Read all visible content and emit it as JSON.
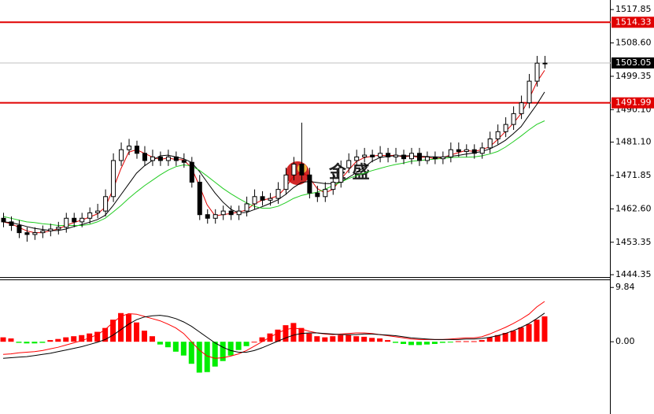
{
  "chart_data": [
    {
      "type": "candlestick",
      "open": [
        1460,
        1459,
        1458,
        1456,
        1455.5,
        1456,
        1456.5,
        1457,
        1457.5,
        1460,
        1459,
        1460,
        1461.5,
        1462,
        1466,
        1476,
        1479,
        1480,
        1478,
        1476,
        1477,
        1476,
        1477,
        1476,
        1475.5,
        1470,
        1461,
        1460,
        1461,
        1462,
        1461,
        1462,
        1464,
        1466,
        1465,
        1465.5,
        1468,
        1472,
        1475,
        1472,
        1467,
        1466,
        1468,
        1470,
        1474,
        1476,
        1477,
        1477.5,
        1477,
        1478,
        1477,
        1477.5,
        1476.5,
        1478,
        1476,
        1477,
        1476.5,
        1477,
        1479,
        1478.5,
        1479,
        1478,
        1479.5,
        1482,
        1484,
        1486,
        1489,
        1492,
        1498,
        1503
      ],
      "high": [
        1461.5,
        1460.5,
        1459.5,
        1457.5,
        1457.5,
        1458,
        1458.5,
        1459,
        1461.5,
        1461.5,
        1461.5,
        1463,
        1464,
        1468,
        1478,
        1481,
        1482,
        1481.5,
        1480,
        1479,
        1478.5,
        1479,
        1478.5,
        1478,
        1477,
        1472,
        1462.5,
        1462.5,
        1463.5,
        1463.5,
        1463.5,
        1466,
        1468,
        1467.5,
        1467,
        1470,
        1474,
        1477,
        1486.5,
        1474,
        1469,
        1470,
        1472,
        1476,
        1478,
        1479,
        1479.5,
        1479,
        1480,
        1479.5,
        1479.5,
        1479,
        1479.5,
        1479.5,
        1478.5,
        1478.5,
        1478.5,
        1481,
        1481,
        1480.5,
        1480.5,
        1481,
        1484,
        1486,
        1488,
        1491,
        1494,
        1500,
        1505,
        1505
      ],
      "low": [
        1457.5,
        1456.5,
        1454.5,
        1453.5,
        1454,
        1454.5,
        1455,
        1455.5,
        1456,
        1457.5,
        1457.5,
        1458.5,
        1460,
        1460.5,
        1464.5,
        1474.5,
        1477.5,
        1476.5,
        1474.5,
        1474.5,
        1474.5,
        1474.5,
        1474.5,
        1474,
        1468.5,
        1459.5,
        1458.5,
        1458.5,
        1459.5,
        1459.5,
        1459.5,
        1460.5,
        1462.5,
        1463.5,
        1463.5,
        1464,
        1466.5,
        1470.5,
        1470.5,
        1465.5,
        1464.5,
        1464.5,
        1466.5,
        1468.5,
        1472.5,
        1474.5,
        1475.5,
        1475.5,
        1475.5,
        1475.5,
        1475.5,
        1475,
        1475,
        1474.5,
        1475,
        1475,
        1475,
        1475.5,
        1477,
        1477,
        1476.5,
        1476.5,
        1478,
        1480.5,
        1482.5,
        1484.5,
        1487.5,
        1490.5,
        1496.5,
        1501.5
      ],
      "close": [
        1459,
        1458,
        1456,
        1455.5,
        1456,
        1456.5,
        1457,
        1457.5,
        1460,
        1459,
        1460,
        1461.5,
        1462,
        1466,
        1476,
        1479,
        1480,
        1478,
        1476,
        1477,
        1476,
        1477,
        1476,
        1475.5,
        1470,
        1461,
        1460,
        1461,
        1462,
        1461,
        1462,
        1464,
        1466,
        1465,
        1465.5,
        1468,
        1472,
        1475,
        1472,
        1467,
        1466,
        1468,
        1470,
        1474,
        1476,
        1477,
        1477.5,
        1477,
        1478,
        1477,
        1477.5,
        1476.5,
        1478,
        1476,
        1477,
        1476.5,
        1477,
        1479,
        1478.5,
        1479,
        1478,
        1479.5,
        1482,
        1484,
        1486,
        1489,
        1492,
        1498,
        1503,
        1503
      ],
      "series": [
        {
          "color": "#e00000",
          "values": [
            1459,
            1458.5,
            1457.5,
            1456.5,
            1456,
            1456,
            1456.5,
            1457,
            1458,
            1458.8,
            1459.5,
            1460.3,
            1461.2,
            1463,
            1468,
            1473.7,
            1478.3,
            1479,
            1478,
            1477,
            1476.3,
            1476.7,
            1476.3,
            1476.2,
            1474,
            1469,
            1463.7,
            1460.7,
            1461,
            1461.3,
            1461.7,
            1462.3,
            1464,
            1465,
            1465.5,
            1466.2,
            1468.5,
            1471.7,
            1473,
            1471.3,
            1468.3,
            1467,
            1468,
            1470.7,
            1473.3,
            1475.7,
            1476.8,
            1477.2,
            1477.5,
            1477.3,
            1477.5,
            1477,
            1477.3,
            1476.8,
            1477,
            1476.5,
            1476.8,
            1477.5,
            1478.2,
            1478.8,
            1478.5,
            1479,
            1479.8,
            1481.8,
            1484,
            1486.3,
            1489,
            1493,
            1497.7,
            1501
          ]
        },
        {
          "color": "#000000",
          "values": [
            1459,
            1458.8,
            1458.3,
            1457.7,
            1457.2,
            1456.9,
            1456.6,
            1456.6,
            1457,
            1457.7,
            1458.2,
            1458.9,
            1459.6,
            1460.8,
            1463.5,
            1466.5,
            1469.5,
            1472.5,
            1474.5,
            1476,
            1477.3,
            1477.5,
            1477,
            1476.5,
            1475.5,
            1473,
            1470,
            1467,
            1464.5,
            1462.5,
            1461.5,
            1461.6,
            1462.4,
            1463.2,
            1464.1,
            1465.1,
            1466.6,
            1468.5,
            1469.9,
            1470.2,
            1469.9,
            1469.6,
            1469.6,
            1470.1,
            1471.3,
            1472.6,
            1474.1,
            1475.8,
            1476.8,
            1477.2,
            1477.3,
            1477.3,
            1477.3,
            1477.2,
            1477.1,
            1477,
            1476.9,
            1477.2,
            1477.4,
            1477.8,
            1478.1,
            1478.5,
            1479.2,
            1480.3,
            1481.6,
            1483.4,
            1485.4,
            1488.5,
            1491.5,
            1495
          ]
        },
        {
          "color": "#22cc22",
          "values": [
            1460.5,
            1460,
            1459.5,
            1459,
            1458.8,
            1458.5,
            1458.3,
            1458,
            1458,
            1458,
            1458,
            1458.3,
            1459,
            1460,
            1461.7,
            1463.5,
            1465.5,
            1467.3,
            1469,
            1470.5,
            1472,
            1473.3,
            1474.3,
            1474.8,
            1474.5,
            1473.3,
            1471.7,
            1470,
            1468.3,
            1466.8,
            1465.5,
            1464.3,
            1463.3,
            1462.8,
            1462.8,
            1463.3,
            1464.3,
            1465.5,
            1466.3,
            1466.8,
            1467.2,
            1468,
            1469,
            1470,
            1471,
            1471.8,
            1472.5,
            1473.2,
            1473.8,
            1474.4,
            1474.9,
            1475.3,
            1475.8,
            1476,
            1476.2,
            1476.4,
            1476.6,
            1476.8,
            1476.9,
            1476.9,
            1477,
            1477.3,
            1477.8,
            1478.5,
            1479.7,
            1481.2,
            1482.8,
            1484.5,
            1486,
            1487
          ]
        }
      ],
      "levels": [
        {
          "value": 1514.33,
          "color": "#e00000"
        },
        {
          "value": 1503.05,
          "color": "#000000"
        },
        {
          "value": 1491.99,
          "color": "#e00000"
        }
      ],
      "watermark": "金 盛",
      "ylim": [
        1443.7,
        1520.5
      ],
      "yticks": [
        1517.85,
        {
          "value": 1508.6,
          "label": "1508.60"
        },
        1499.35,
        {
          "value": 1490.1,
          "label": "1490.10"
        },
        {
          "value": 1481.1,
          "label": "1481.10"
        },
        1471.85,
        {
          "value": 1462.6,
          "label": "1462.60"
        },
        1453.35,
        1444.35
      ]
    },
    {
      "type": "macd",
      "values": [
        0.8,
        0.6,
        -0.2,
        -0.3,
        -0.3,
        -0.2,
        0.3,
        0.5,
        0.8,
        1.0,
        1.2,
        1.5,
        1.8,
        2.5,
        4.0,
        5.2,
        5.0,
        3.5,
        2.0,
        1.0,
        -0.5,
        -1.0,
        -1.8,
        -2.5,
        -4.0,
        -5.6,
        -5.5,
        -4.5,
        -3.5,
        -2.5,
        -1.5,
        -0.8,
        0,
        0.8,
        1.5,
        2.2,
        3.0,
        3.4,
        2.5,
        1.5,
        1.0,
        0.8,
        1.0,
        1.2,
        1.2,
        1.0,
        0.9,
        0.7,
        0.6,
        0.3,
        -0.2,
        -0.4,
        -0.6,
        -0.6,
        -0.5,
        -0.4,
        -0.2,
        -0.1,
        0.1,
        0.1,
        0.1,
        0.3,
        0.8,
        1.2,
        1.6,
        2.0,
        2.6,
        3.2,
        4.0,
        4.6
      ],
      "colors": [
        "#ff0000",
        "#00ee00"
      ],
      "series": [
        {
          "color": "#ff0000",
          "values": [
            -2.3,
            -2.2,
            -2,
            -1.9,
            -1.8,
            -1.6,
            -1.3,
            -1,
            -0.6,
            -0.2,
            0.2,
            0.7,
            1.3,
            2.2,
            3.5,
            4.6,
            5.1,
            5.0,
            4.6,
            4.2,
            3.8,
            3.2,
            2.5,
            1.5,
            0,
            -1.5,
            -2.6,
            -3,
            -2.9,
            -2.6,
            -2.2,
            -1.6,
            -0.8,
            0,
            0.8,
            1.6,
            2.2,
            2.5,
            2.3,
            1.9,
            1.6,
            1.4,
            1.3,
            1.4,
            1.5,
            1.6,
            1.6,
            1.5,
            1.3,
            1.1,
            0.9,
            0.7,
            0.5,
            0.4,
            0.4,
            0.4,
            0.4,
            0.5,
            0.6,
            0.7,
            0.7,
            0.9,
            1.4,
            2,
            2.6,
            3.3,
            4.1,
            5.0,
            6.3,
            7.3
          ]
        },
        {
          "color": "#000000",
          "values": [
            -3,
            -2.9,
            -2.8,
            -2.7,
            -2.5,
            -2.3,
            -2.1,
            -1.8,
            -1.5,
            -1.2,
            -0.9,
            -0.5,
            -0.1,
            0.4,
            1.2,
            2.2,
            3.2,
            4,
            4.5,
            4.7,
            4.8,
            4.6,
            4.2,
            3.6,
            2.8,
            1.8,
            0.8,
            -0.2,
            -1,
            -1.6,
            -1.9,
            -1.9,
            -1.6,
            -1.1,
            -0.5,
            0.1,
            0.7,
            1.2,
            1.5,
            1.6,
            1.6,
            1.5,
            1.4,
            1.3,
            1.3,
            1.3,
            1.4,
            1.4,
            1.3,
            1.2,
            1.1,
            0.9,
            0.7,
            0.6,
            0.5,
            0.4,
            0.4,
            0.4,
            0.4,
            0.5,
            0.5,
            0.6,
            0.8,
            1.1,
            1.5,
            2,
            2.6,
            3.3,
            4.2,
            5.2
          ]
        }
      ],
      "ylim": [
        -13.1,
        11.3
      ],
      "yticks": [
        9.84,
        {
          "value": 0,
          "label": "0.00"
        }
      ]
    }
  ]
}
